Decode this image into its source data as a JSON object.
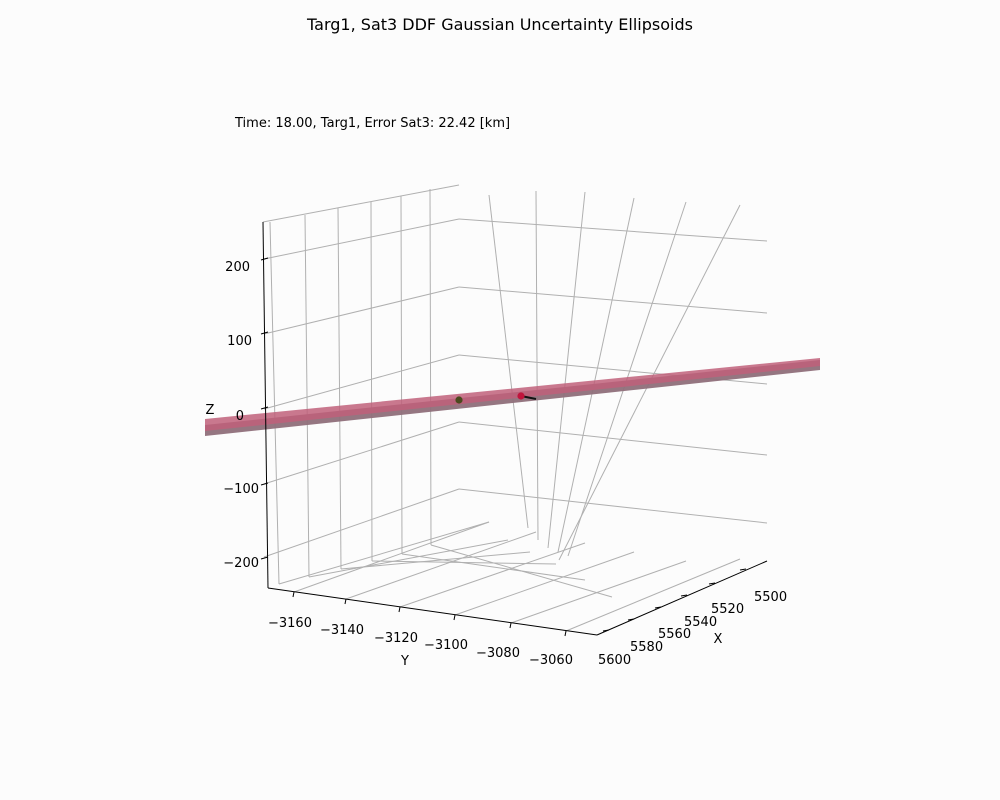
{
  "figure": {
    "title": "Targ1, Sat3 DDF Gaussian Uncertainty Ellipsoids",
    "annotation": "Time: 18.00, Targ1, Error Sat3: 22.42 [km]",
    "background": "#fcfcfc"
  },
  "chart_data": {
    "type": "scatter",
    "projection": "3d",
    "title": "Targ1, Sat3 DDF Gaussian Uncertainty Ellipsoids",
    "annotation": "Time: 18.00, Targ1, Error Sat3: 22.42 [km]",
    "xlabel": "X",
    "ylabel": "Y",
    "zlabel": "Z",
    "x_ticks": [
      "5500",
      "5520",
      "5540",
      "5560",
      "5580",
      "5600"
    ],
    "y_ticks": [
      "−3160",
      "−3140",
      "−3120",
      "−3100",
      "−3080",
      "−3060"
    ],
    "z_ticks": [
      "−200",
      "−100",
      "0",
      "100",
      "200"
    ],
    "grid": true,
    "series": [
      {
        "kind": "ellipsoid",
        "color": "#c0607a",
        "shadow_color": "#8f6f7a"
      },
      {
        "kind": "point",
        "color": "#4a4a1e"
      },
      {
        "kind": "point",
        "color": "#c0143c"
      },
      {
        "kind": "line",
        "color": "#111111"
      }
    ]
  }
}
